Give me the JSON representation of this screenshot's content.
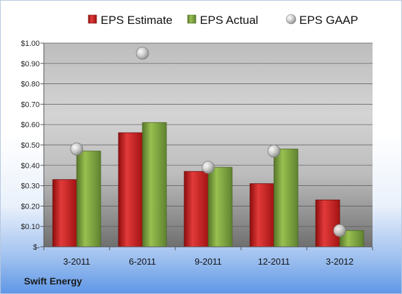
{
  "chart_data": {
    "type": "bar",
    "categories": [
      "3-2011",
      "6-2011",
      "9-2011",
      "12-2011",
      "3-2012"
    ],
    "series": [
      {
        "name": "EPS Estimate",
        "values": [
          0.33,
          0.56,
          0.37,
          0.31,
          0.23
        ],
        "color": "#cc1f1f",
        "kind": "bar"
      },
      {
        "name": "EPS Actual",
        "values": [
          0.47,
          0.61,
          0.39,
          0.48,
          0.08
        ],
        "color": "#7ea43a",
        "kind": "bar"
      },
      {
        "name": "EPS GAAP",
        "values": [
          0.48,
          0.95,
          0.39,
          0.47,
          0.08
        ],
        "color": "#c8c8c8",
        "kind": "scatter"
      }
    ],
    "ylim": [
      0,
      1.0
    ],
    "yticks": [
      {
        "value": 1.0,
        "label": "$1.00"
      },
      {
        "value": 0.9,
        "label": "$0.90"
      },
      {
        "value": 0.8,
        "label": "$0.80"
      },
      {
        "value": 0.7,
        "label": "$0.70"
      },
      {
        "value": 0.6,
        "label": "$0.60"
      },
      {
        "value": 0.5,
        "label": "$0.50"
      },
      {
        "value": 0.4,
        "label": "$0.40"
      },
      {
        "value": 0.3,
        "label": "$0.30"
      },
      {
        "value": 0.2,
        "label": "$0.20"
      },
      {
        "value": 0.1,
        "label": "$0.10"
      },
      {
        "value": 0.0,
        "label": "$-"
      }
    ],
    "grid": true,
    "legend": "top"
  },
  "company": "Swift Energy"
}
